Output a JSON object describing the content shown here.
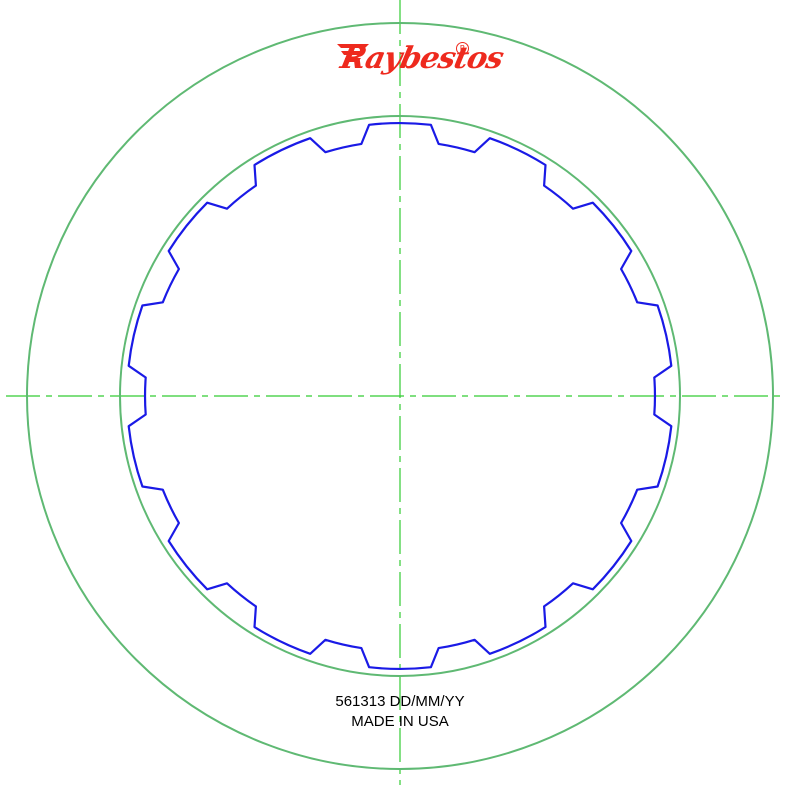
{
  "drawing": {
    "part_number_line": "561313 DD/MM/YY",
    "origin_line": "MADE IN USA",
    "logo": {
      "text": "Raybestos",
      "registered_mark": "R"
    }
  },
  "colors": {
    "outline": "#5fb973",
    "centerline": "#33cc33",
    "spline": "#1a1ae6",
    "logo": "#ee2a1e",
    "text": "#000000"
  },
  "spline": {
    "teeth": 14
  }
}
